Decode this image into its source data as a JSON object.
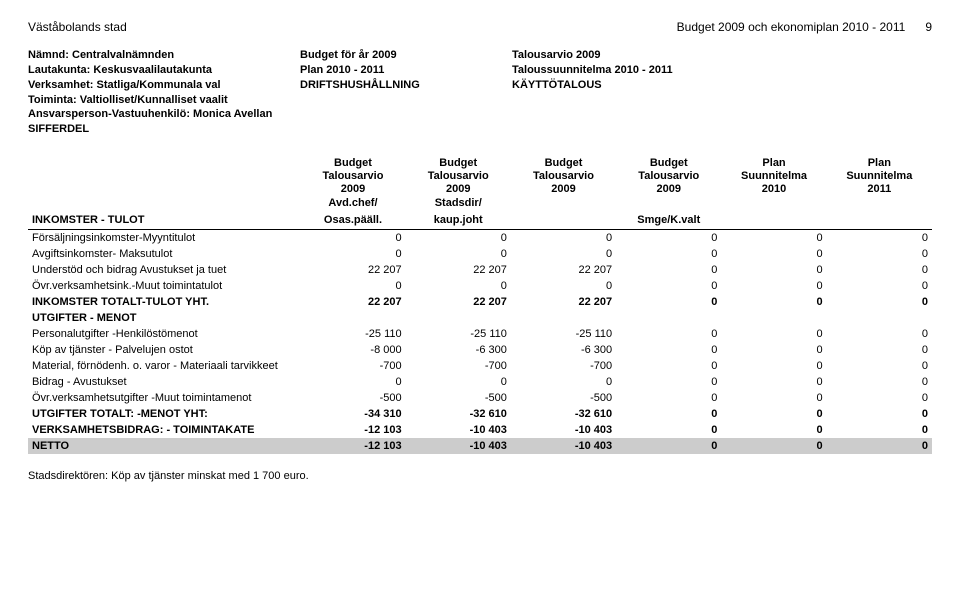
{
  "header": {
    "left": "Väståbolands stad",
    "right": "Budget 2009 och ekonomiplan 2010 - 2011",
    "page": "9"
  },
  "meta": {
    "left": [
      "Nämnd: Centralvalnämnden",
      "Lautakunta: Keskusvaalilautakunta",
      "",
      "Verksamhet: Statliga/Kommunala val",
      "Toiminta: Valtiolliset/Kunnalliset vaalit",
      "Ansvarsperson-Vastuuhenkilö: Monica Avellan",
      "SIFFERDEL"
    ],
    "mid": [
      "Budget för år 2009",
      "Plan  2010 - 2011",
      "DRIFTSHUSHÅLLNING"
    ],
    "right": [
      "Talousarvio 2009",
      "Taloussuunnitelma 2010 - 2011",
      "KÄYTTÖTALOUS"
    ]
  },
  "columns": [
    {
      "l1": "Budget",
      "l2": "Talousarvio",
      "l3": "2009",
      "l4": "Avd.chef/",
      "l5": "Osas.pääll."
    },
    {
      "l1": "Budget",
      "l2": "Talousarvio",
      "l3": "2009",
      "l4": "Stadsdir/",
      "l5": "kaup.joht"
    },
    {
      "l1": "Budget",
      "l2": "Talousarvio",
      "l3": "2009",
      "l4": "",
      "l5": ""
    },
    {
      "l1": "Budget",
      "l2": "Talousarvio",
      "l3": "2009",
      "l4": "",
      "l5": "Smge/K.valt"
    },
    {
      "l1": "Plan",
      "l2": "Suunnitelma",
      "l3": "2010",
      "l4": "",
      "l5": ""
    },
    {
      "l1": "Plan",
      "l2": "Suunnitelma",
      "l3": "2011",
      "l4": "",
      "l5": ""
    }
  ],
  "sections": {
    "inkomster_title": "INKOMSTER - TULOT",
    "utgifter_title": "UTGIFTER - MENOT"
  },
  "rows": {
    "r1": {
      "label": "Försäljningsinkomster-Myyntitulot",
      "v": [
        "0",
        "0",
        "0",
        "0",
        "0",
        "0"
      ],
      "bold": false
    },
    "r2": {
      "label": "Avgiftsinkomster- Maksutulot",
      "v": [
        "0",
        "0",
        "0",
        "0",
        "0",
        "0"
      ],
      "bold": false
    },
    "r3": {
      "label": "Understöd och bidrag Avustukset ja tuet",
      "v": [
        "22 207",
        "22 207",
        "22 207",
        "0",
        "0",
        "0"
      ],
      "bold": false
    },
    "r4": {
      "label": "Övr.verksamhetsink.-Muut toimintatulot",
      "v": [
        "0",
        "0",
        "0",
        "0",
        "0",
        "0"
      ],
      "bold": false
    },
    "r5": {
      "label": "INKOMSTER TOTALT-TULOT YHT.",
      "v": [
        "22 207",
        "22 207",
        "22 207",
        "0",
        "0",
        "0"
      ],
      "bold": true
    },
    "r6": {
      "label": "Personalutgifter -Henkilöstömenot",
      "v": [
        "-25 110",
        "-25 110",
        "-25 110",
        "0",
        "0",
        "0"
      ],
      "bold": false
    },
    "r7": {
      "label": "Köp av tjänster - Palvelujen ostot",
      "v": [
        "-8 000",
        "-6 300",
        "-6 300",
        "0",
        "0",
        "0"
      ],
      "bold": false
    },
    "r8": {
      "label": "Material, förnödenh. o. varor - Materiaali tarvikkeet",
      "v": [
        "-700",
        "-700",
        "-700",
        "0",
        "0",
        "0"
      ],
      "bold": false
    },
    "r9": {
      "label": "Bidrag - Avustukset",
      "v": [
        "0",
        "0",
        "0",
        "0",
        "0",
        "0"
      ],
      "bold": false
    },
    "r10": {
      "label": "Övr.verksamhetsutgifter -Muut toimintamenot",
      "v": [
        "-500",
        "-500",
        "-500",
        "0",
        "0",
        "0"
      ],
      "bold": false
    },
    "r11": {
      "label": "UTGIFTER TOTALT: -MENOT YHT:",
      "v": [
        "-34 310",
        "-32 610",
        "-32 610",
        "0",
        "0",
        "0"
      ],
      "bold": true
    },
    "r12": {
      "label": "VERKSAMHETSBIDRAG: - TOIMINTAKATE",
      "v": [
        "-12 103",
        "-10 403",
        "-10 403",
        "0",
        "0",
        "0"
      ],
      "bold": true
    },
    "r13": {
      "label": "NETTO",
      "v": [
        "-12 103",
        "-10 403",
        "-10 403",
        "0",
        "0",
        "0"
      ],
      "bold": true
    }
  },
  "footnote": "Stadsdirektören: Köp av tjänster minskat med 1 700 euro."
}
